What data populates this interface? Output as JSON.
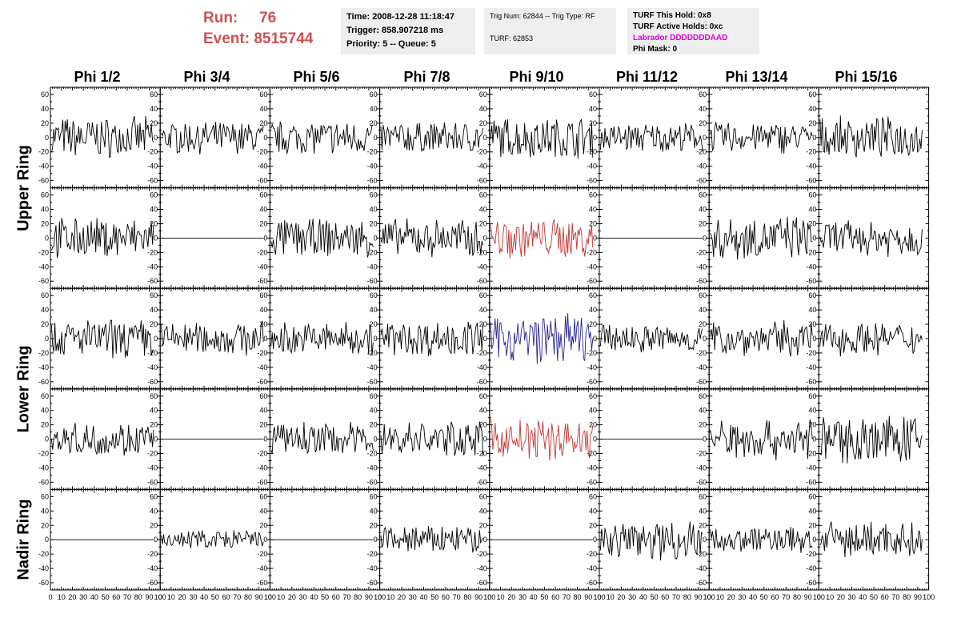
{
  "header": {
    "run_label": "Run:",
    "run_value": "76",
    "event_label": "Event:",
    "event_value": "8515744",
    "time": "Time: 2008-12-28 11:18:47",
    "trigger": "Trigger: 858.907218 ms",
    "priority": "Priority: 5 -- Queue: 5",
    "trig_num": "Trig Num: 62844 -- Trig Type: RF",
    "turf": "TURF: 62853",
    "turf_hold": "TURF This Hold: 0x8",
    "turf_active": "TURF Active Holds: 0xc",
    "labrador": "Labrador DDDDDDDAAD",
    "phi_mask": "Phi Mask: 0"
  },
  "colors": {
    "run_text": "#d05050",
    "labrador_text": "#dd00dd",
    "trace": "#000000",
    "red_trace": "#c83232",
    "blue_trace": "#232396"
  },
  "chart_data": {
    "type": "line",
    "columns": [
      "Phi 1/2",
      "Phi 3/4",
      "Phi 5/6",
      "Phi 7/8",
      "Phi 9/10",
      "Phi 11/12",
      "Phi 13/14",
      "Phi 15/16"
    ],
    "ring_labels": [
      "Upper Ring",
      "Lower Ring",
      "Nadir Ring"
    ],
    "ylim": [
      -70,
      70
    ],
    "yticks": [
      -60,
      -40,
      -20,
      0,
      20,
      40,
      60
    ],
    "xlim": [
      0,
      100
    ],
    "xticks": [
      0,
      10,
      20,
      30,
      40,
      50,
      60,
      70,
      80,
      90,
      100
    ],
    "samples": 91,
    "rows": [
      {
        "amps": [
          18,
          14,
          15,
          14,
          18,
          13,
          14,
          18
        ],
        "colors": [
          "k",
          "k",
          "k",
          "k",
          "k",
          "k",
          "k",
          "k"
        ]
      },
      {
        "amps": [
          18,
          0,
          17,
          17,
          18,
          0,
          20,
          16
        ],
        "colors": [
          "k",
          "k",
          "k",
          "k",
          "r",
          "k",
          "k",
          "k"
        ]
      },
      {
        "amps": [
          17,
          15,
          15,
          16,
          22,
          13,
          16,
          15
        ],
        "colors": [
          "k",
          "k",
          "k",
          "k",
          "b",
          "k",
          "k",
          "k"
        ]
      },
      {
        "amps": [
          15,
          0,
          15,
          16,
          18,
          0,
          18,
          21
        ],
        "colors": [
          "k",
          "k",
          "k",
          "k",
          "r",
          "k",
          "k",
          "k"
        ]
      },
      {
        "amps": [
          0,
          9,
          0,
          13,
          0,
          18,
          12,
          16
        ],
        "colors": [
          "k",
          "k",
          "k",
          "k",
          "k",
          "k",
          "k",
          "k"
        ]
      }
    ]
  }
}
